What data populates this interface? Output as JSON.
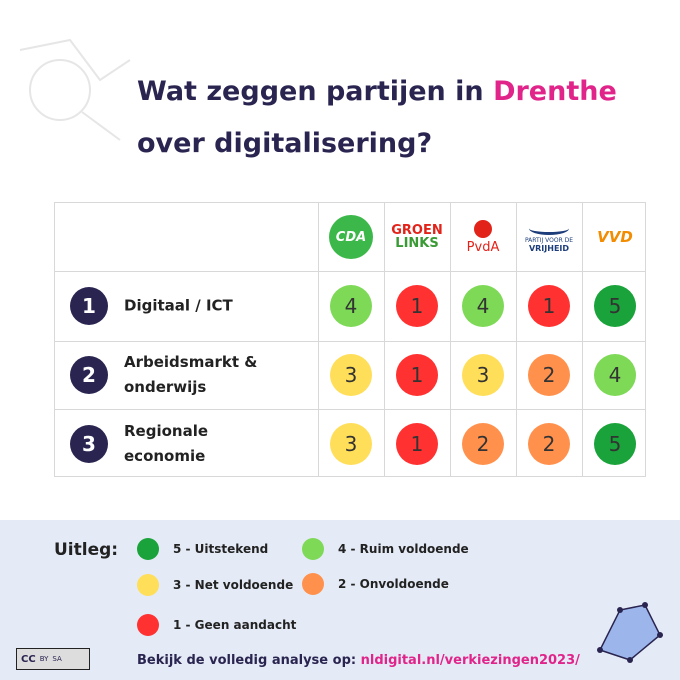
{
  "header": {
    "title_line1": "Wat zeggen partijen in",
    "title_highlight": "Drenthe",
    "title_line2": "over digitalisering?"
  },
  "table": {
    "parties": [
      {
        "logo": [
          "CDA"
        ]
      },
      {
        "logo": [
          "GROEN",
          "LINKS"
        ]
      },
      {
        "logo": [
          "PvdA"
        ]
      },
      {
        "logo": [
          "PARTIJ VOOR DE",
          "VRIJHEID"
        ]
      },
      {
        "logo": [
          "VVD"
        ]
      }
    ],
    "rows": [
      {
        "number": 1,
        "label": "Digitaal / ICT",
        "scores": [
          4,
          1,
          4,
          1,
          5
        ]
      },
      {
        "number": 2,
        "label": "Arbeidsmarkt & onderwijs",
        "scores": [
          3,
          1,
          3,
          2,
          4
        ]
      },
      {
        "number": 3,
        "label": "Regionale economie",
        "scores": [
          3,
          1,
          2,
          2,
          5
        ]
      }
    ]
  },
  "legend": {
    "title": "Uitleg:",
    "items": [
      {
        "label": "5 - Uitstekend",
        "color": "#1aa33a"
      },
      {
        "label": "4 - Ruim voldoende",
        "color": "#7ed957"
      },
      {
        "label": "3 - Net voldoende",
        "color": "#ffde59"
      },
      {
        "label": "2 - Onvoldoende",
        "color": "#ff914d"
      },
      {
        "label": "1 - Geen aandacht",
        "color": "#ff3131"
      }
    ]
  },
  "footer": {
    "text": "Bekijk de volledig analyse op:",
    "link": "nldigital.nl/verkiezingen2023/",
    "license": [
      "BY",
      "SA"
    ]
  }
}
